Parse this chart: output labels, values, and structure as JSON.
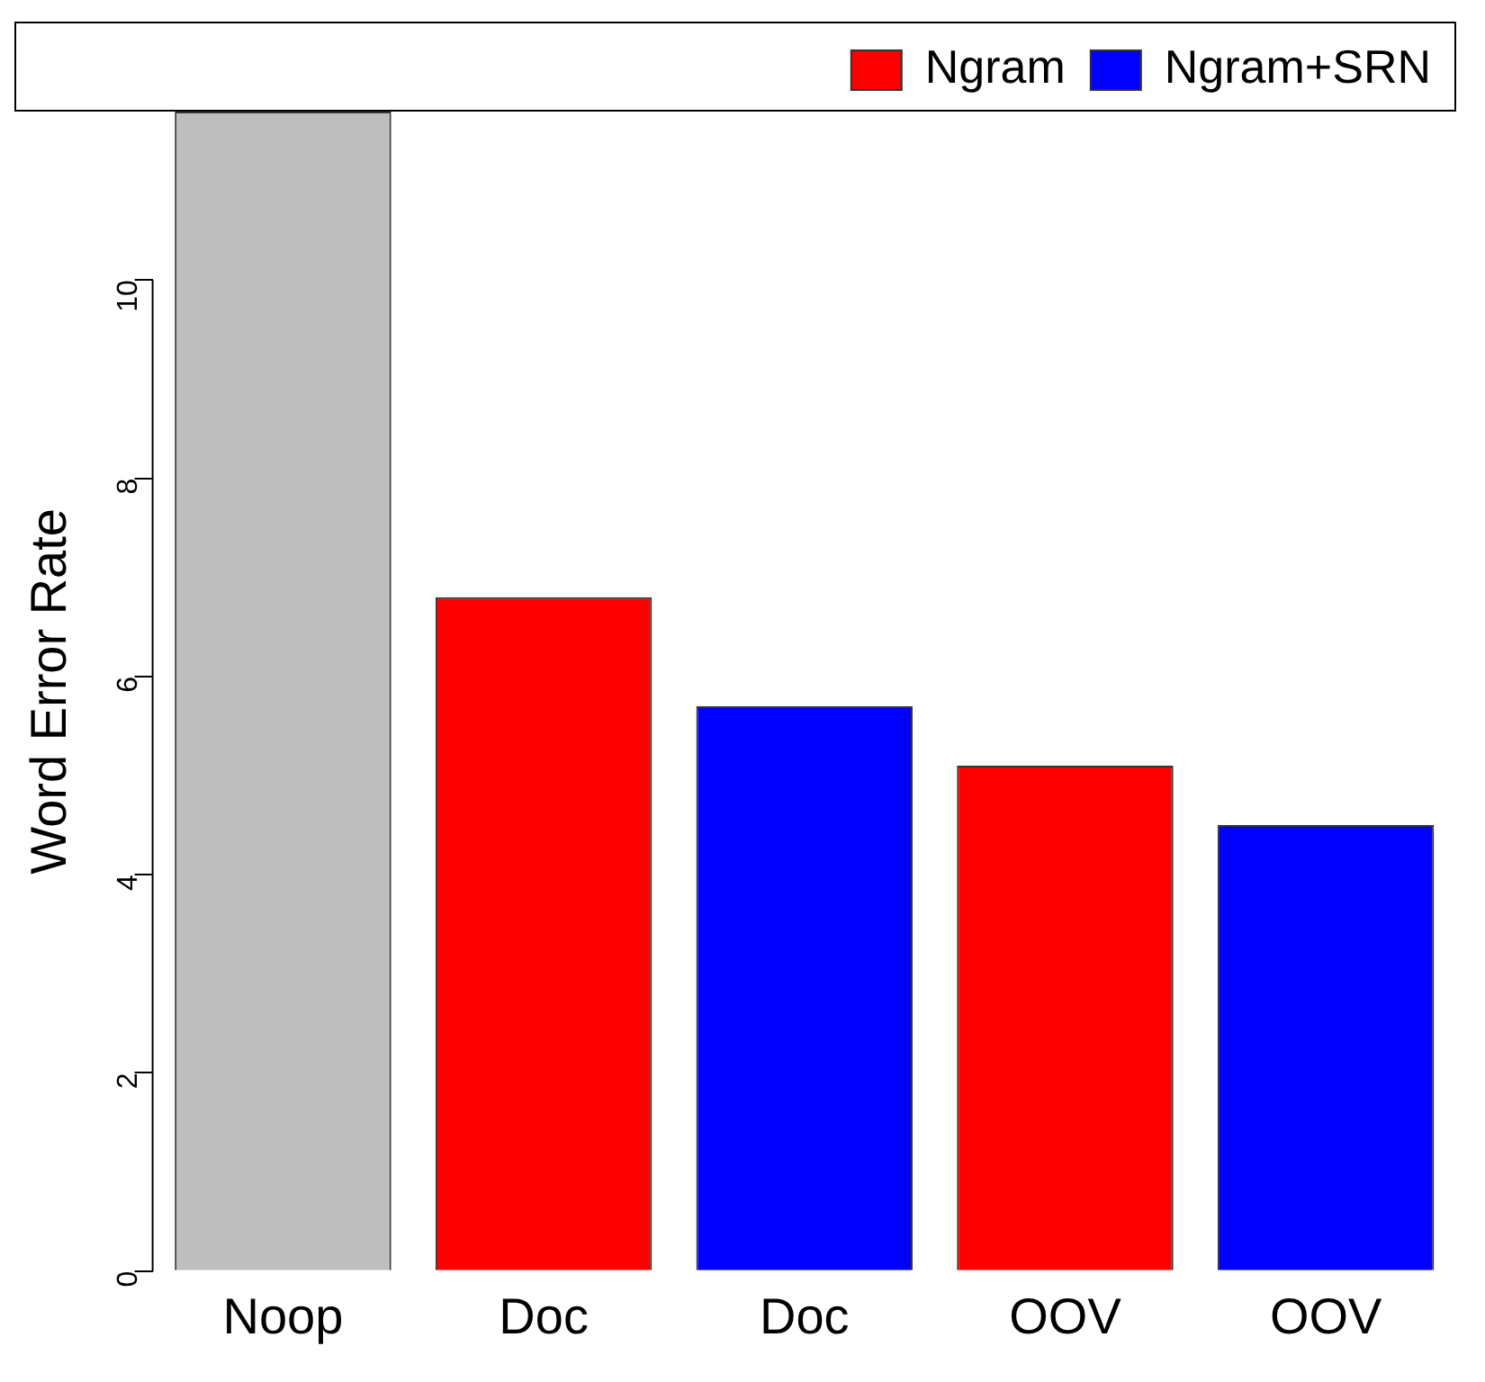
{
  "chart_data": {
    "type": "bar",
    "ylabel": "Word Error Rate",
    "categories": [
      "Noop",
      "Doc",
      "Doc",
      "OOV",
      "OOV"
    ],
    "series": [
      {
        "color": "#bebebe",
        "values": [
          11.7,
          null,
          null,
          null,
          null
        ]
      },
      {
        "name": "Ngram",
        "color": "#ff0000",
        "values": [
          null,
          6.8,
          null,
          5.1,
          null
        ]
      },
      {
        "name": "Ngram+SRN",
        "color": "#0000ff",
        "values": [
          null,
          null,
          5.7,
          null,
          4.5
        ]
      }
    ],
    "ylim": [
      0,
      11.7
    ],
    "yticks": [
      0,
      2,
      4,
      6,
      8,
      10
    ],
    "grid": false,
    "legend": "top right"
  }
}
